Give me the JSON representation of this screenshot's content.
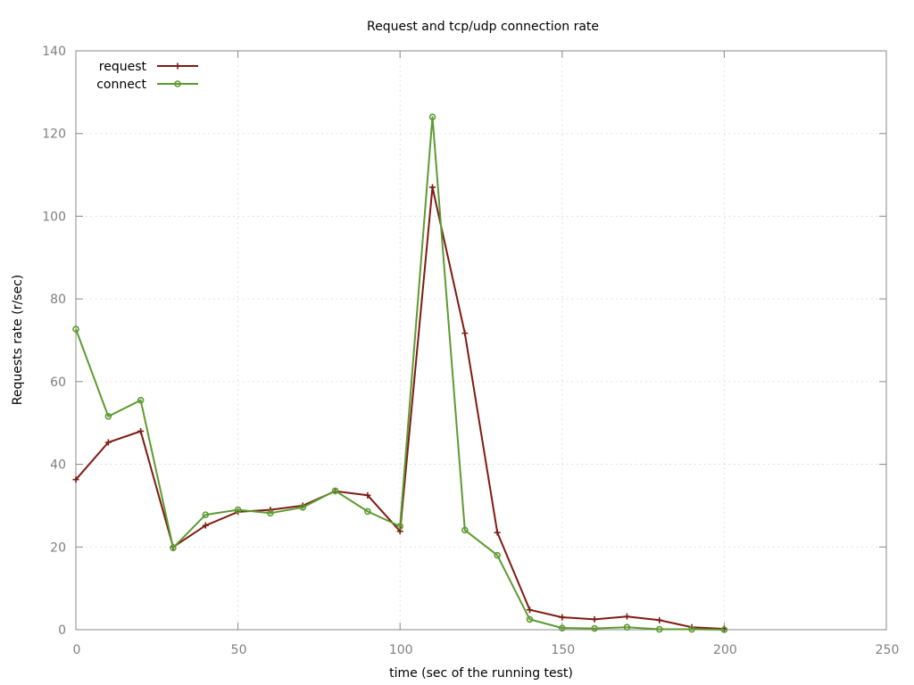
{
  "chart_data": {
    "type": "line",
    "title": "Request and tcp/udp connection rate",
    "xlabel": "time (sec of the running test)",
    "ylabel": "Requests rate (r/sec)",
    "xlim": [
      0,
      250
    ],
    "ylim": [
      0,
      140
    ],
    "xticks": [
      0,
      50,
      100,
      150,
      200,
      250
    ],
    "yticks": [
      0,
      20,
      40,
      60,
      80,
      100,
      120,
      140
    ],
    "grid": true,
    "legend_position": "top-left",
    "x": [
      0,
      10,
      20,
      30,
      40,
      50,
      60,
      70,
      80,
      90,
      100,
      110,
      120,
      130,
      140,
      150,
      160,
      170,
      180,
      190,
      200
    ],
    "series": [
      {
        "name": "request",
        "color": "#7f1a11",
        "marker": "plus",
        "values": [
          36.3,
          45.3,
          48.0,
          20.0,
          25.2,
          28.5,
          29.0,
          30.0,
          33.5,
          32.5,
          23.8,
          107.0,
          71.7,
          23.5,
          4.8,
          3.0,
          2.5,
          3.2,
          2.3,
          0.6,
          0.2
        ]
      },
      {
        "name": "connect",
        "color": "#5c9b31",
        "marker": "circle",
        "values": [
          72.7,
          51.6,
          55.5,
          19.8,
          27.8,
          29.0,
          28.2,
          29.6,
          33.6,
          28.6,
          25.0,
          124.0,
          24.1,
          18.0,
          2.5,
          0.4,
          0.3,
          0.6,
          0.1,
          0.1,
          0.0
        ]
      }
    ]
  }
}
